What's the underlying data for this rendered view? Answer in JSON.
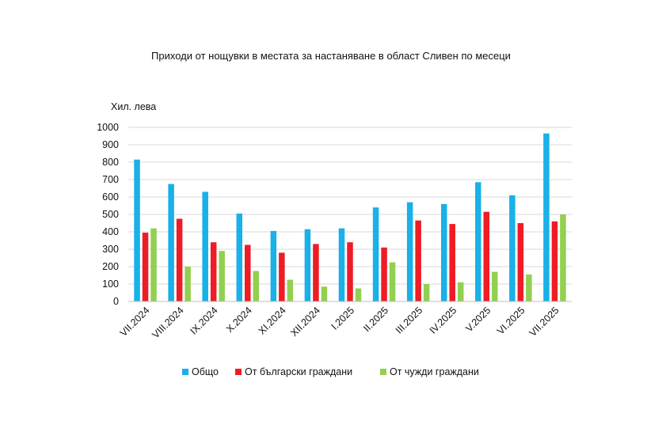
{
  "chart_data": {
    "type": "bar",
    "title": "Приходи от нощувки в местата за настаняване в област Сливен по месеци",
    "ylabel": "Хил. лева",
    "ylim": [
      0,
      1000
    ],
    "yticks": [
      0,
      100,
      200,
      300,
      400,
      500,
      600,
      700,
      800,
      900,
      1000
    ],
    "grid": true,
    "legend_position": "bottom",
    "categories": [
      "VII.2024",
      "VIII.2024",
      "IX.2024",
      "X.2024",
      "XI.2024",
      "XII.2024",
      "I.2025",
      "II.2025",
      "III.2025",
      "IV.2025",
      "V.2025",
      "VI.2025",
      "VII.2025"
    ],
    "series": [
      {
        "name": "Общо",
        "color": "#1ab0e8",
        "values": [
          815,
          675,
          630,
          505,
          405,
          415,
          420,
          540,
          570,
          560,
          685,
          610,
          965
        ]
      },
      {
        "name": "От български граждани",
        "color": "#ee1c25",
        "values": [
          395,
          475,
          340,
          325,
          280,
          330,
          340,
          310,
          465,
          445,
          515,
          450,
          460
        ]
      },
      {
        "name": "От чужди граждани",
        "color": "#92d050",
        "values": [
          420,
          200,
          290,
          175,
          125,
          85,
          75,
          225,
          100,
          110,
          170,
          155,
          500
        ]
      }
    ]
  }
}
